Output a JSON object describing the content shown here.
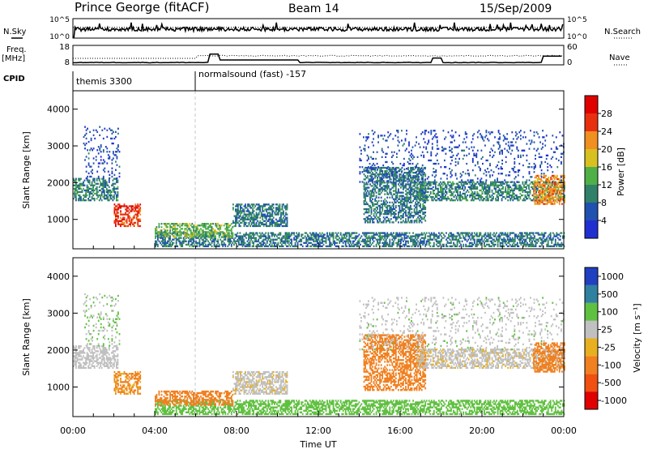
{
  "header": {
    "station": "Prince George (fitACF)",
    "beam": "Beam 14",
    "date": "15/Sep/2009"
  },
  "side_labels": {
    "nsky": "N.Sky",
    "nsearch": "N.Search",
    "freq_line1": "Freq.",
    "freq_line2": "[MHz]",
    "nave": "Nave",
    "cpid": "CPID"
  },
  "noise_axis": {
    "ticks_left": [
      "10^5",
      "10^0"
    ],
    "ticks_right": [
      "10^5",
      "10^0"
    ]
  },
  "freq_axis": {
    "ticks_left": [
      "18",
      "8"
    ],
    "ticks_right": [
      "60",
      "0"
    ]
  },
  "cpid_segments": [
    {
      "label": "themis 3300",
      "start_hour": 0
    },
    {
      "label": "normalsound (fast) -157",
      "start_hour": 6
    }
  ],
  "time_axis": {
    "title": "Time UT",
    "tick_labels": [
      "00:00",
      "04:00",
      "08:00",
      "12:00",
      "16:00",
      "20:00",
      "00:00"
    ],
    "tick_hours": [
      0,
      4,
      8,
      12,
      16,
      20,
      24
    ]
  },
  "power_panel": {
    "ylabel": "Slant Range [km]",
    "ytick_labels": [
      "1000",
      "2000",
      "3000",
      "4000"
    ],
    "ytick_values": [
      1000,
      2000,
      3000,
      4000
    ],
    "colorbar_label": "Power [dB]",
    "colorbar_ticks": [
      "4",
      "8",
      "12",
      "16",
      "20",
      "24",
      "28"
    ],
    "colors": [
      "#2030d0",
      "#2050b0",
      "#30806a",
      "#50b048",
      "#d8c020",
      "#f09020",
      "#e83010",
      "#e00000"
    ]
  },
  "velocity_panel": {
    "ylabel": "Slant Range [km]",
    "ytick_labels": [
      "1000",
      "2000",
      "3000",
      "4000"
    ],
    "ytick_values": [
      1000,
      2000,
      3000,
      4000
    ],
    "colorbar_label": "Velocity [m s⁻¹]",
    "colorbar_ticks": [
      "1000",
      "500",
      "100",
      "25",
      "-25",
      "-100",
      "-500",
      "-1000"
    ],
    "colors": [
      "#2040c0",
      "#3080a0",
      "#60c040",
      "#c0c0c0",
      "#e8b020",
      "#f08020",
      "#f05010",
      "#e00000"
    ]
  },
  "chart_data": {
    "type": "heatmap",
    "x_range_hours": [
      0,
      24
    ],
    "y_range_km": [
      200,
      4500
    ],
    "regions": [
      {
        "name": "early-band",
        "t0": 0.0,
        "t1": 2.2,
        "r0": 1500,
        "r1": 2100,
        "power": 10,
        "velocity": 20
      },
      {
        "name": "early-sparse",
        "t0": 0.5,
        "t1": 2.3,
        "r0": 2100,
        "r1": 3500,
        "power": 5,
        "velocity": 60
      },
      {
        "name": "blob",
        "t0": 2.0,
        "t1": 3.3,
        "r0": 800,
        "r1": 1400,
        "power": 26,
        "velocity": -80
      },
      {
        "name": "near-band",
        "t0": 4.0,
        "t1": 24.0,
        "r0": 250,
        "r1": 650,
        "power": 9,
        "velocity": 110
      },
      {
        "name": "morning-arc",
        "t0": 4.0,
        "t1": 7.8,
        "r0": 500,
        "r1": 900,
        "power": 14,
        "velocity": -100
      },
      {
        "name": "mid-patch",
        "t0": 7.8,
        "t1": 10.5,
        "r0": 800,
        "r1": 1400,
        "power": 9,
        "velocity": 0
      },
      {
        "name": "evening-rise",
        "t0": 14.2,
        "t1": 17.2,
        "r0": 900,
        "r1": 2400,
        "power": 9,
        "velocity": -100
      },
      {
        "name": "late-band",
        "t0": 16.8,
        "t1": 24.0,
        "r0": 1500,
        "r1": 2000,
        "power": 10,
        "velocity": 0
      },
      {
        "name": "late-hot",
        "t0": 22.5,
        "t1": 24.0,
        "r0": 1400,
        "r1": 2200,
        "power": 22,
        "velocity": -150
      },
      {
        "name": "late-sparse",
        "t0": 14.0,
        "t1": 24.0,
        "r0": 2000,
        "r1": 3400,
        "power": 5,
        "velocity": 30
      }
    ]
  }
}
